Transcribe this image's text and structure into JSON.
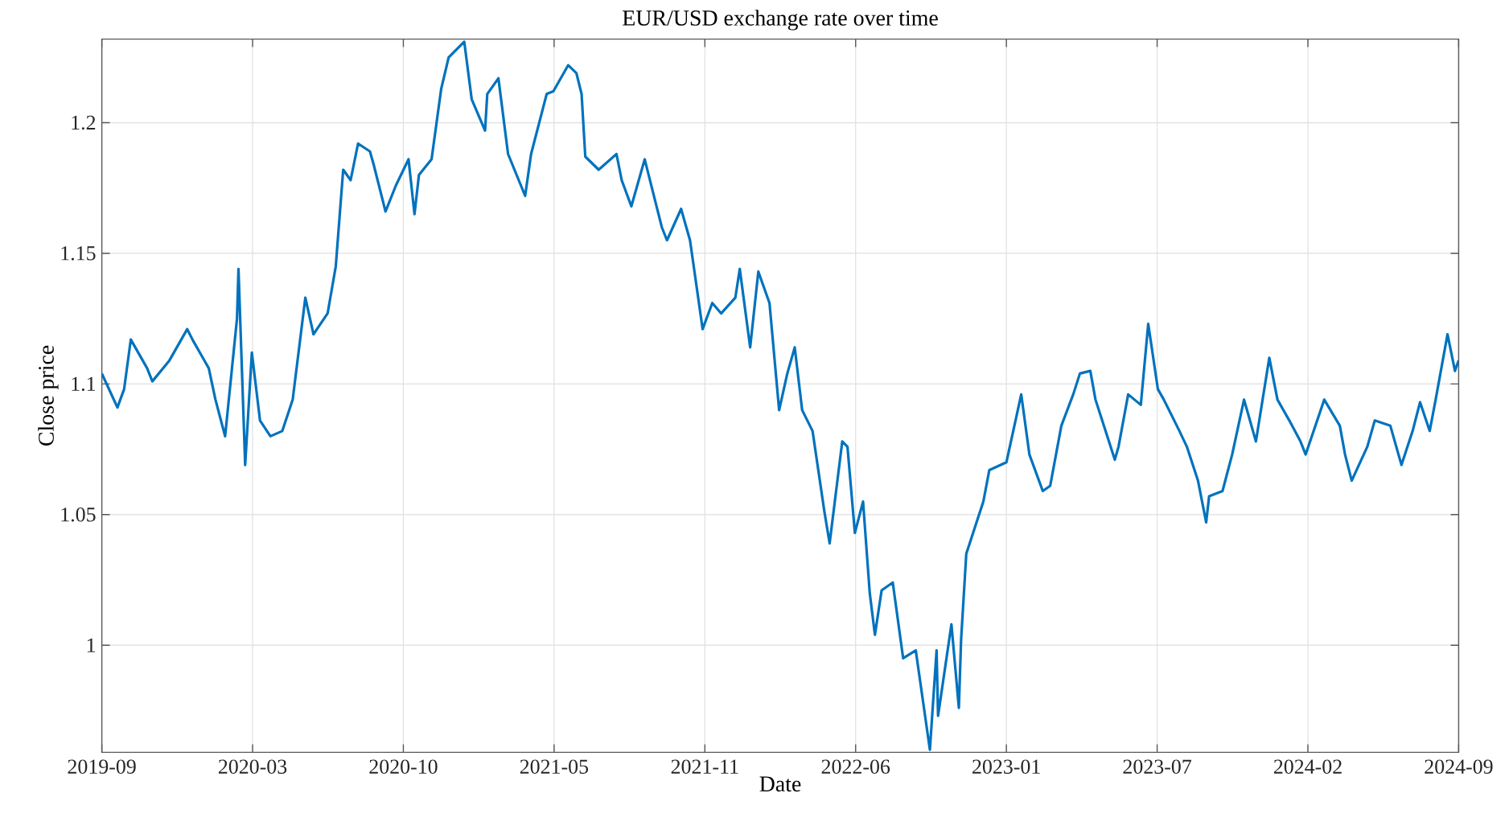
{
  "chart_data": {
    "type": "line",
    "title": "EUR/USD exchange rate over time",
    "xlabel": "Date",
    "ylabel": "Close price",
    "x": [
      "2019-09-01",
      "2019-09-22",
      "2019-10-01",
      "2019-10-10",
      "2019-11-01",
      "2019-11-08",
      "2019-12-01",
      "2019-12-25",
      "2020-01-01",
      "2020-01-23",
      "2020-02-01",
      "2020-02-14",
      "2020-03-01",
      "2020-03-03",
      "2020-03-12",
      "2020-03-21",
      "2020-04-01",
      "2020-04-15",
      "2020-05-01",
      "2020-05-15",
      "2020-06-01",
      "2020-06-12",
      "2020-07-01",
      "2020-07-12",
      "2020-07-22",
      "2020-08-01",
      "2020-08-11",
      "2020-08-27",
      "2020-09-01",
      "2020-09-17",
      "2020-10-01",
      "2020-10-18",
      "2020-10-26",
      "2020-11-01",
      "2020-11-18",
      "2020-12-01",
      "2020-12-11",
      "2021-01-01",
      "2021-01-11",
      "2021-01-29",
      "2021-02-01",
      "2021-02-16",
      "2021-03-01",
      "2021-03-24",
      "2021-04-01",
      "2021-04-22",
      "2021-05-01",
      "2021-05-21",
      "2021-06-01",
      "2021-06-08",
      "2021-06-13",
      "2021-07-01",
      "2021-07-25",
      "2021-08-01",
      "2021-08-14",
      "2021-09-01",
      "2021-09-24",
      "2021-10-01",
      "2021-10-20",
      "2021-11-01",
      "2021-11-18",
      "2021-12-01",
      "2021-12-13",
      "2022-01-01",
      "2022-01-07",
      "2022-01-21",
      "2022-02-01",
      "2022-02-16",
      "2022-03-01",
      "2022-03-12",
      "2022-03-22",
      "2022-04-01",
      "2022-04-15",
      "2022-05-01",
      "2022-05-08",
      "2022-05-25",
      "2022-06-01",
      "2022-06-11",
      "2022-06-22",
      "2022-07-01",
      "2022-07-08",
      "2022-07-17",
      "2022-08-01",
      "2022-08-15",
      "2022-09-01",
      "2022-09-20",
      "2022-09-29",
      "2022-10-01",
      "2022-10-19",
      "2022-10-29",
      "2022-11-01",
      "2022-11-08",
      "2022-12-01",
      "2022-12-09",
      "2023-01-01",
      "2023-01-21",
      "2023-02-01",
      "2023-02-19",
      "2023-03-01",
      "2023-03-16",
      "2023-04-01",
      "2023-04-10",
      "2023-04-24",
      "2023-05-01",
      "2023-05-27",
      "2023-06-01",
      "2023-06-14",
      "2023-07-01",
      "2023-07-11",
      "2023-07-24",
      "2023-08-01",
      "2023-08-22",
      "2023-09-01",
      "2023-09-16",
      "2023-09-27",
      "2023-10-01",
      "2023-10-19",
      "2023-11-01",
      "2023-11-17",
      "2023-12-03",
      "2023-12-21",
      "2024-01-01",
      "2024-01-17",
      "2024-02-01",
      "2024-02-08",
      "2024-03-04",
      "2024-03-25",
      "2024-04-01",
      "2024-04-10",
      "2024-05-01",
      "2024-05-11",
      "2024-06-01",
      "2024-06-16",
      "2024-07-01",
      "2024-07-11",
      "2024-07-24",
      "2024-08-01",
      "2024-08-17",
      "2024-08-27",
      "2024-09-01"
    ],
    "series": [
      {
        "color": "#0072bd",
        "values": [
          1.104,
          1.091,
          1.098,
          1.117,
          1.106,
          1.101,
          1.109,
          1.121,
          1.117,
          1.106,
          1.094,
          1.08,
          1.125,
          1.144,
          1.069,
          1.112,
          1.086,
          1.08,
          1.082,
          1.094,
          1.133,
          1.119,
          1.127,
          1.145,
          1.182,
          1.178,
          1.192,
          1.189,
          1.184,
          1.166,
          1.176,
          1.186,
          1.165,
          1.18,
          1.186,
          1.213,
          1.225,
          1.231,
          1.209,
          1.197,
          1.211,
          1.217,
          1.188,
          1.172,
          1.188,
          1.211,
          1.212,
          1.222,
          1.219,
          1.211,
          1.187,
          1.182,
          1.188,
          1.178,
          1.168,
          1.186,
          1.16,
          1.155,
          1.167,
          1.155,
          1.121,
          1.131,
          1.127,
          1.133,
          1.144,
          1.114,
          1.143,
          1.131,
          1.09,
          1.104,
          1.114,
          1.09,
          1.082,
          1.051,
          1.039,
          1.078,
          1.076,
          1.043,
          1.055,
          1.02,
          1.004,
          1.021,
          1.024,
          0.995,
          0.998,
          0.96,
          0.998,
          0.973,
          1.008,
          0.976,
          1.002,
          1.035,
          1.055,
          1.067,
          1.07,
          1.096,
          1.073,
          1.059,
          1.061,
          1.084,
          1.096,
          1.104,
          1.105,
          1.094,
          1.071,
          1.076,
          1.096,
          1.092,
          1.123,
          1.098,
          1.094,
          1.082,
          1.076,
          1.063,
          1.047,
          1.057,
          1.059,
          1.073,
          1.094,
          1.078,
          1.11,
          1.094,
          1.086,
          1.078,
          1.073,
          1.094,
          1.084,
          1.073,
          1.063,
          1.076,
          1.086,
          1.084,
          1.069,
          1.082,
          1.093,
          1.082,
          1.094,
          1.119,
          1.105,
          1.109
        ]
      }
    ],
    "xlim": [
      "2019-09-01",
      "2024-09-01"
    ],
    "ylim": [
      0.959,
      1.232
    ],
    "xticks": [
      {
        "value": "2019-09-01",
        "label": "2019-09"
      },
      {
        "value": "2020-03-22",
        "label": "2020-03"
      },
      {
        "value": "2020-10-11",
        "label": "2020-10"
      },
      {
        "value": "2021-05-02",
        "label": "2021-05"
      },
      {
        "value": "2021-11-21",
        "label": "2021-11"
      },
      {
        "value": "2022-06-12",
        "label": "2022-06"
      },
      {
        "value": "2023-01-01",
        "label": "2023-01"
      },
      {
        "value": "2023-07-23",
        "label": "2023-07"
      },
      {
        "value": "2024-02-11",
        "label": "2024-02"
      },
      {
        "value": "2024-09-01",
        "label": "2024-09"
      }
    ],
    "yticks": [
      1,
      1.05,
      1.1,
      1.15,
      1.2
    ],
    "grid": true
  }
}
